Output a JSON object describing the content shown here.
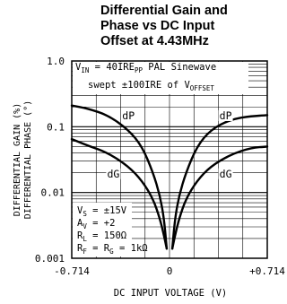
{
  "chart_data": {
    "type": "line",
    "title_lines": [
      "Differential Gain and",
      "Phase vs DC Input",
      "Offset at 4.43MHz"
    ],
    "xlabel": "DC INPUT VOLTAGE (V)",
    "ylabel_lines": [
      "DIFFERENTIAL GAIN (%)",
      "DIFFERENTIAL PHASE (°)"
    ],
    "x_ticks": [
      "-0.714",
      "0",
      "+0.714"
    ],
    "y_ticks": [
      "1.0",
      "0.1",
      "0.01",
      "0.001"
    ],
    "xlim": [
      -0.714,
      0.714
    ],
    "ylim": [
      0.001,
      1.0
    ],
    "y_scale": "log",
    "grid": true,
    "legend_box": {
      "line1": {
        "v": "V",
        "sub": "IN",
        "rest": " = 40IRE",
        "sub2": "PP",
        "rest2": " PAL Sinewave"
      },
      "line2": {
        "text": "swept ±100IRE of V",
        "sub": "OFFSET"
      }
    },
    "conditions": [
      {
        "main": "V",
        "sub": "S",
        "rest": " = ±15V"
      },
      {
        "main": "A",
        "sub": "V",
        "rest": " = +2"
      },
      {
        "main": "R",
        "sub": "L",
        "rest": " = 150Ω"
      },
      {
        "main": "R",
        "sub": "F",
        "rest": " = R",
        "sub2": "G",
        "rest2": " = 1kΩ"
      }
    ],
    "series": [
      {
        "name": "dP",
        "x": [
          -0.714,
          -0.6,
          -0.45,
          -0.3,
          -0.2,
          -0.12,
          -0.07,
          -0.04,
          -0.02,
          0.02,
          0.04,
          0.07,
          0.12,
          0.2,
          0.3,
          0.45,
          0.6,
          0.714
        ],
        "values": [
          0.21,
          0.19,
          0.15,
          0.09,
          0.05,
          0.02,
          0.009,
          0.004,
          0.0014,
          0.0014,
          0.004,
          0.009,
          0.02,
          0.05,
          0.09,
          0.13,
          0.145,
          0.15
        ]
      },
      {
        "name": "dG",
        "x": [
          -0.714,
          -0.6,
          -0.45,
          -0.3,
          -0.2,
          -0.12,
          -0.07,
          -0.04,
          -0.02,
          0.02,
          0.04,
          0.07,
          0.12,
          0.2,
          0.3,
          0.45,
          0.6,
          0.714
        ],
        "values": [
          0.065,
          0.052,
          0.04,
          0.025,
          0.015,
          0.008,
          0.004,
          0.0022,
          0.0014,
          0.0014,
          0.0022,
          0.004,
          0.008,
          0.015,
          0.025,
          0.038,
          0.048,
          0.05
        ]
      }
    ],
    "curve_labels": [
      {
        "text": "dP",
        "x": -0.3,
        "y": 0.13
      },
      {
        "text": "dP",
        "x": 0.41,
        "y": 0.13
      },
      {
        "text": "dG",
        "x": -0.41,
        "y": 0.017
      },
      {
        "text": "dG",
        "x": 0.41,
        "y": 0.017
      }
    ]
  }
}
